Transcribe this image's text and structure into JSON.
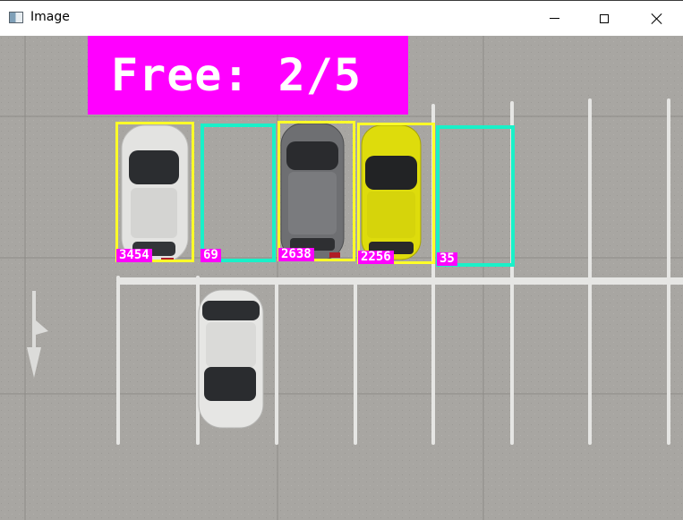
{
  "window": {
    "title": "Image",
    "icon": "image-window-icon",
    "controls": [
      "minimize-icon",
      "maximize-icon",
      "close-icon"
    ]
  },
  "overlay": {
    "free_text": "Free: 2/5",
    "banner_color": "#ff00ff",
    "label_color": "#ff00ff",
    "occupied_color": "#ffff28",
    "free_color": "#19f0c8"
  },
  "spots": [
    {
      "label": "3454",
      "status": "occupied"
    },
    {
      "label": "69",
      "status": "free"
    },
    {
      "label": "2638",
      "status": "occupied"
    },
    {
      "label": "2256",
      "status": "occupied"
    },
    {
      "label": "35",
      "status": "free"
    }
  ]
}
